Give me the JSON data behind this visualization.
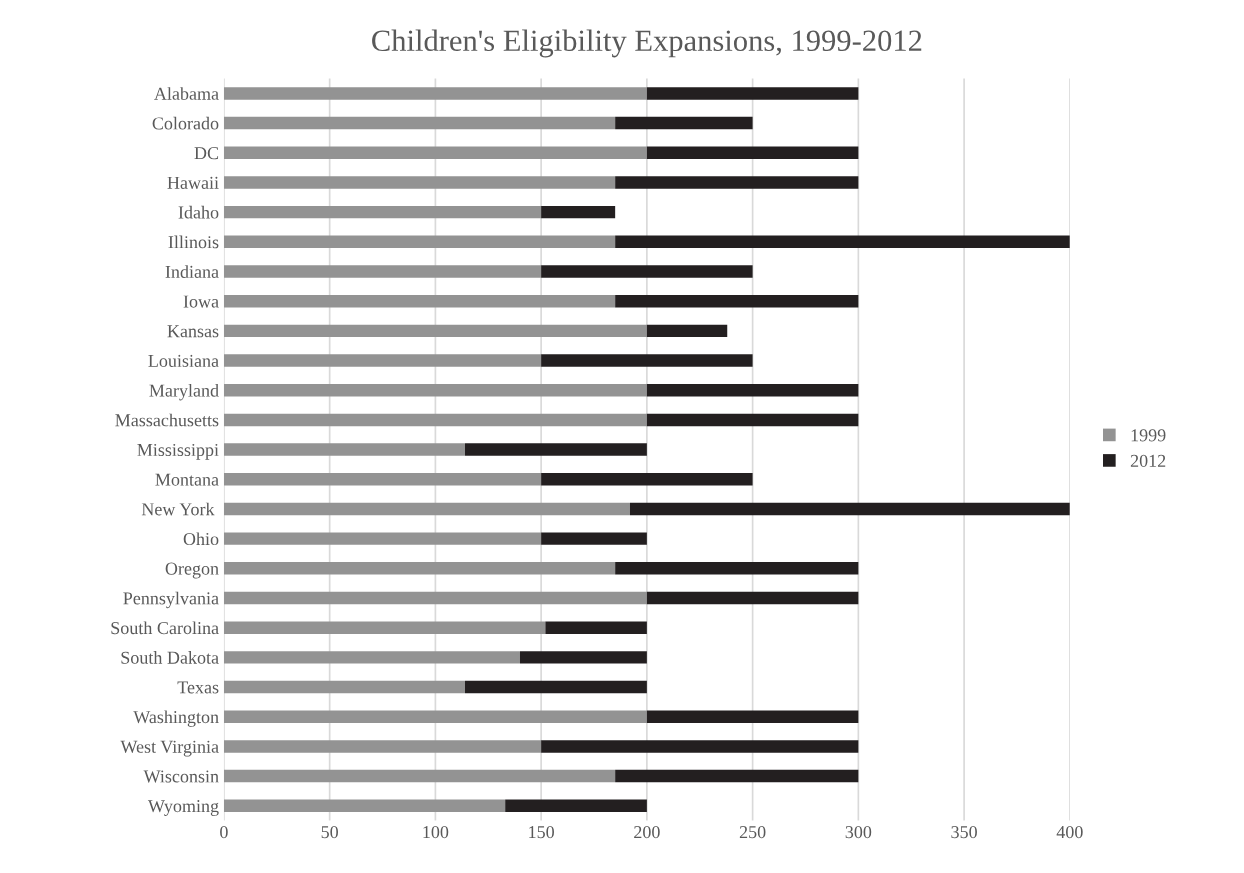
{
  "chart_data": {
    "type": "bar",
    "orientation": "horizontal",
    "stacked": true,
    "title": "Children's Eligibility Expansions, 1999-2012",
    "categories": [
      "Alabama",
      "Colorado",
      "DC",
      "Hawaii",
      "Idaho",
      "Illinois",
      "Indiana",
      "Iowa",
      "Kansas",
      "Louisiana",
      "Maryland",
      "Massachusetts",
      "Mississippi",
      "Montana",
      "New York ",
      "Ohio",
      "Oregon",
      "Pennsylvania",
      "South Carolina",
      "South Dakota",
      "Texas",
      "Washington",
      "West Virginia",
      "Wisconsin",
      "Wyoming"
    ],
    "series": [
      {
        "name": "1999",
        "color": "#939393",
        "values": [
          200,
          185,
          200,
          185,
          150,
          185,
          150,
          185,
          200,
          150,
          200,
          200,
          114,
          150,
          192,
          150,
          185,
          200,
          152,
          140,
          114,
          200,
          150,
          185,
          133
        ]
      },
      {
        "name": "2012",
        "color": "#231f20",
        "values": [
          100,
          65,
          100,
          115,
          35,
          215,
          100,
          115,
          38,
          100,
          100,
          100,
          86,
          100,
          208,
          50,
          115,
          100,
          48,
          60,
          86,
          100,
          150,
          115,
          67
        ]
      }
    ],
    "xlim": [
      0,
      400
    ],
    "xticks": [
      0,
      50,
      100,
      150,
      200,
      250,
      300,
      350,
      400
    ],
    "grid": "x",
    "legend": "right"
  }
}
